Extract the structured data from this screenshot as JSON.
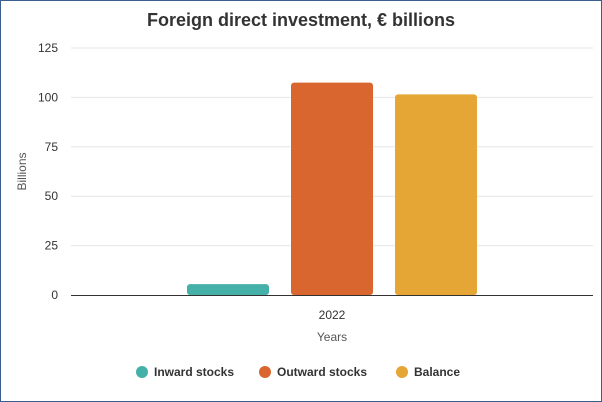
{
  "chart_data": {
    "type": "bar",
    "title": "Foreign direct investment, € billions",
    "xlabel": "Years",
    "ylabel": "Billions",
    "categories": [
      "2022"
    ],
    "ylim": [
      0,
      125
    ],
    "yticks": [
      0,
      25,
      50,
      75,
      100,
      125
    ],
    "grid": true,
    "legend_position": "bottom",
    "series": [
      {
        "name": "Inward stocks",
        "values": [
          5.5
        ],
        "color": "#45b0a8"
      },
      {
        "name": "Outward stocks",
        "values": [
          107.5
        ],
        "color": "#d9662f"
      },
      {
        "name": "Balance",
        "values": [
          101.5
        ],
        "color": "#e5a635"
      }
    ]
  }
}
